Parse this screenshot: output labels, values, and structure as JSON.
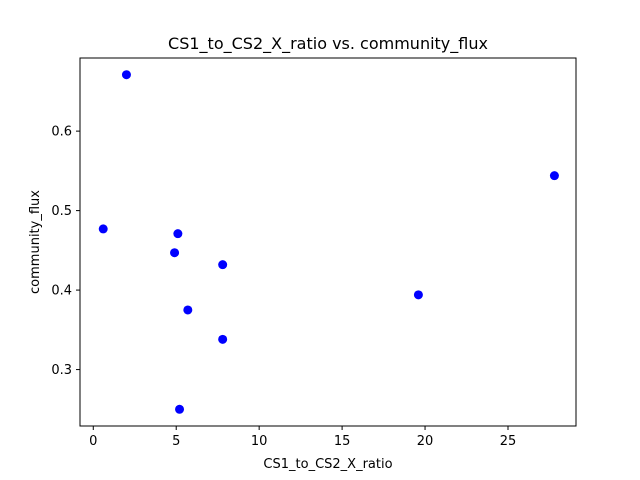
{
  "chart_data": {
    "type": "scatter",
    "title": "CS1_to_CS2_X_ratio vs. community_flux",
    "xlabel": "CS1_to_CS2_X_ratio",
    "ylabel": "community_flux",
    "xlim": [
      -0.8,
      29.1
    ],
    "ylim": [
      0.229,
      0.692
    ],
    "xticks": [
      0,
      5,
      10,
      15,
      20,
      25
    ],
    "yticks": [
      0.3,
      0.4,
      0.5,
      0.6
    ],
    "xtick_labels": [
      "0",
      "5",
      "10",
      "15",
      "20",
      "25"
    ],
    "ytick_labels": [
      "0.3",
      "0.4",
      "0.5",
      "0.6"
    ],
    "grid": false,
    "legend": false,
    "series": [
      {
        "name": "community_flux",
        "color": "#0000ff",
        "points": [
          {
            "x": 2.0,
            "y": 0.671
          },
          {
            "x": 0.6,
            "y": 0.477
          },
          {
            "x": 5.1,
            "y": 0.471
          },
          {
            "x": 4.9,
            "y": 0.447
          },
          {
            "x": 7.8,
            "y": 0.432
          },
          {
            "x": 5.7,
            "y": 0.375
          },
          {
            "x": 7.8,
            "y": 0.338
          },
          {
            "x": 5.2,
            "y": 0.25
          },
          {
            "x": 19.6,
            "y": 0.394
          },
          {
            "x": 27.8,
            "y": 0.544
          }
        ]
      }
    ]
  }
}
